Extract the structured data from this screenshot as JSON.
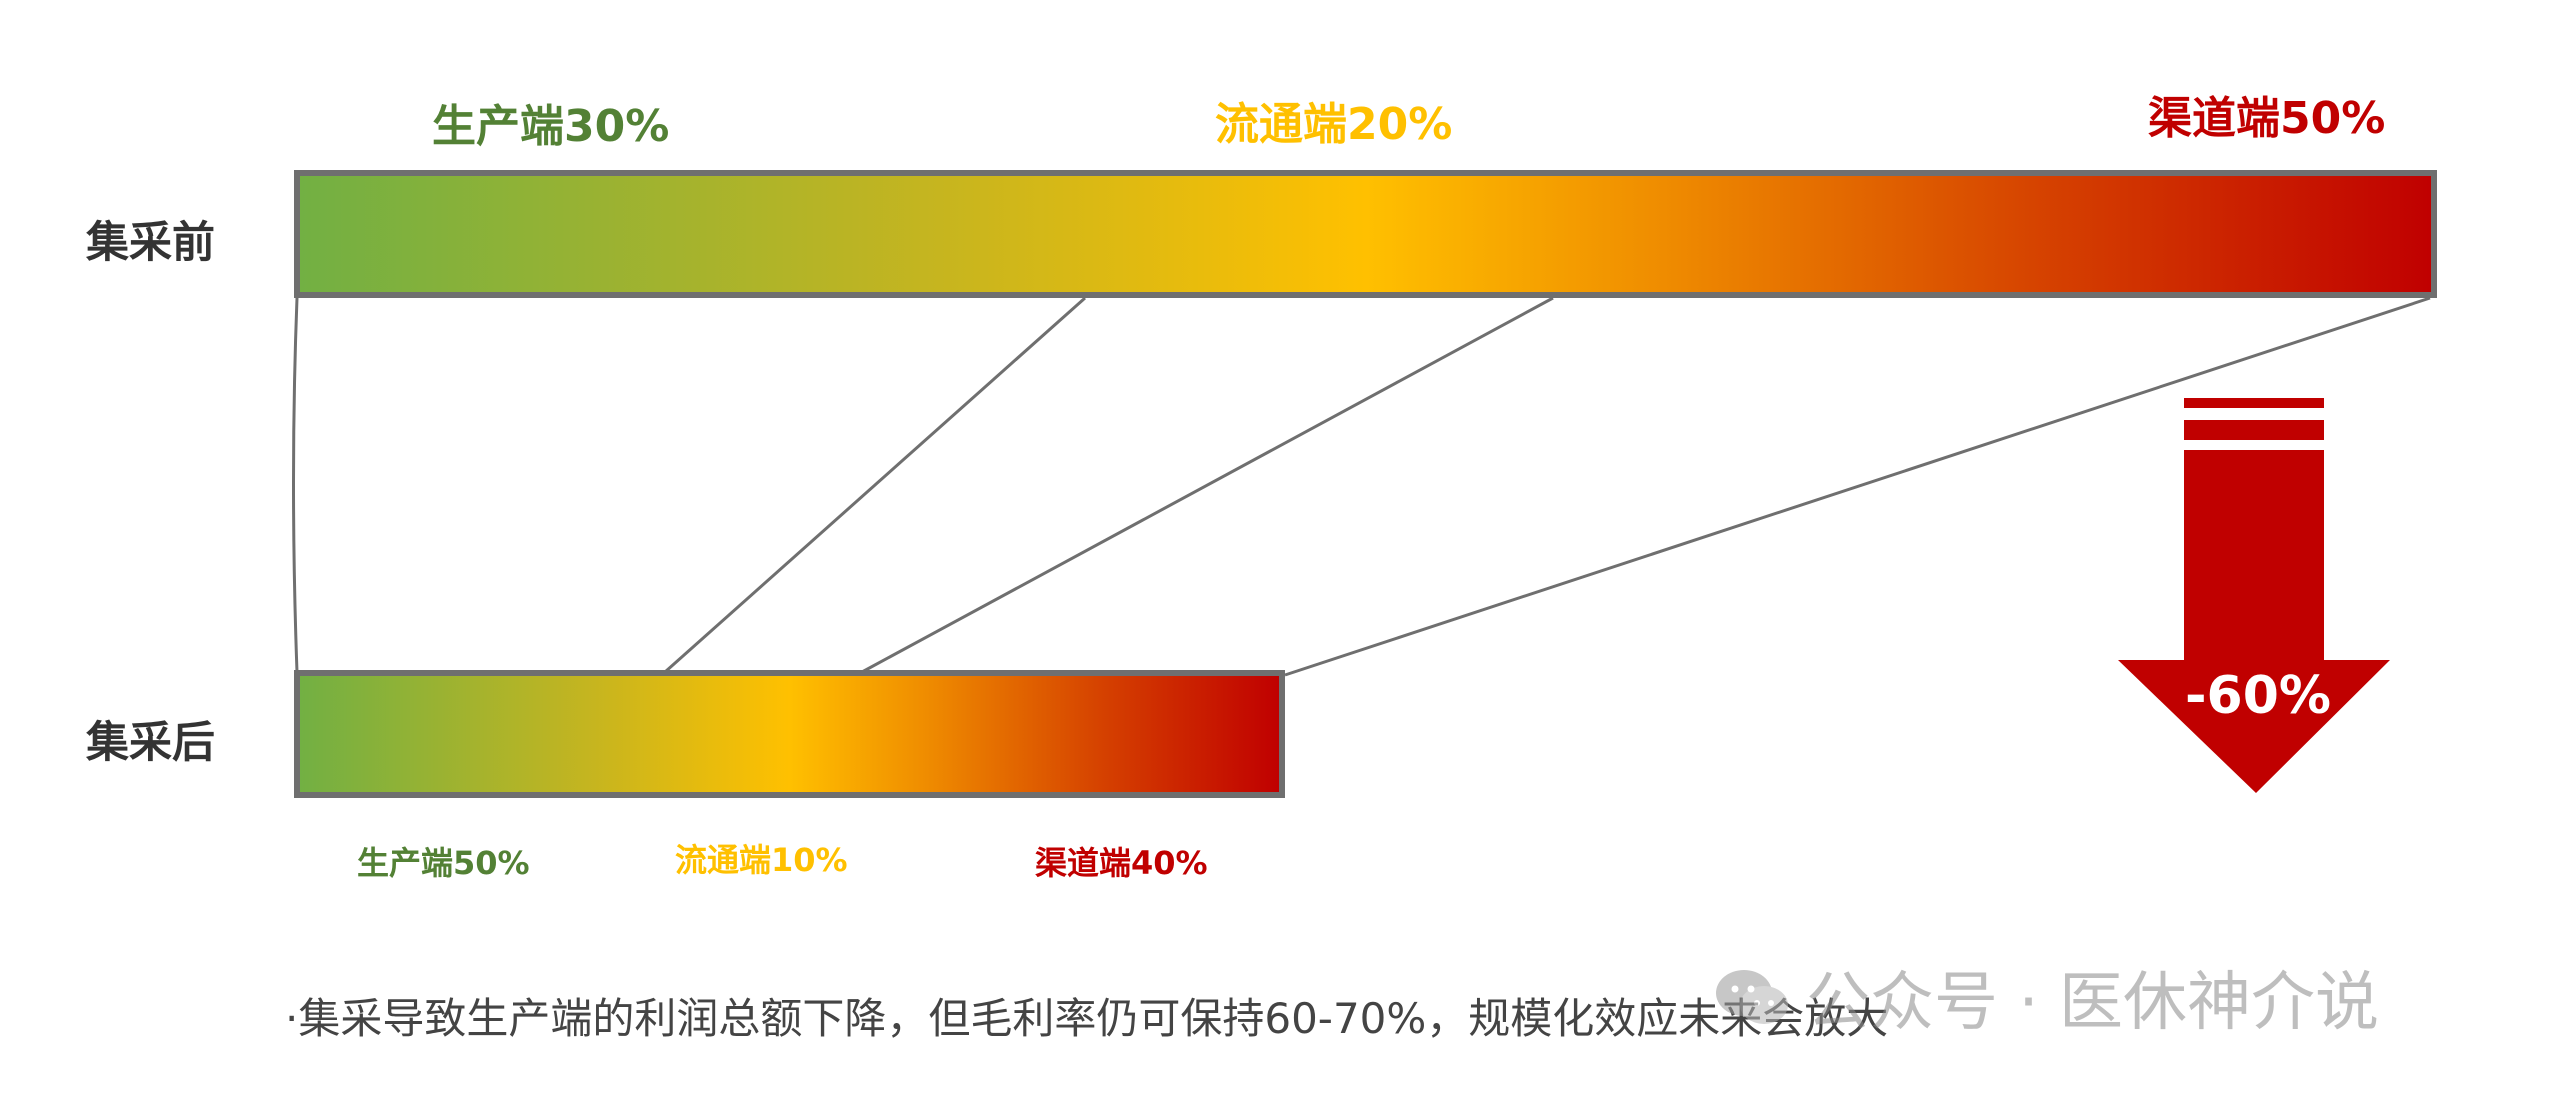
{
  "rows": {
    "before_label": "集采前",
    "after_label": "集采后"
  },
  "before": {
    "segments": [
      {
        "label": "生产端30%",
        "share": 30,
        "color": "#538135"
      },
      {
        "label": "流通端20%",
        "share": 20,
        "color": "#ffc000"
      },
      {
        "label": "渠道端50%",
        "share": 50,
        "color": "#c00000"
      }
    ]
  },
  "after": {
    "segments": [
      {
        "label": "生产端50%",
        "share": 50,
        "color": "#538135"
      },
      {
        "label": "流通端10%",
        "share": 10,
        "color": "#ffc000"
      },
      {
        "label": "渠道端40%",
        "share": 40,
        "color": "#c00000"
      }
    ]
  },
  "change": {
    "label": "-60%",
    "color": "#c00000"
  },
  "footnote": "·集采导致生产端的利润总额下降，但毛利率仍可保持60-70%，规模化效应未来会放大",
  "watermark": {
    "text": "公众号 · 医休神介说",
    "icon": "wechat-icon"
  }
}
